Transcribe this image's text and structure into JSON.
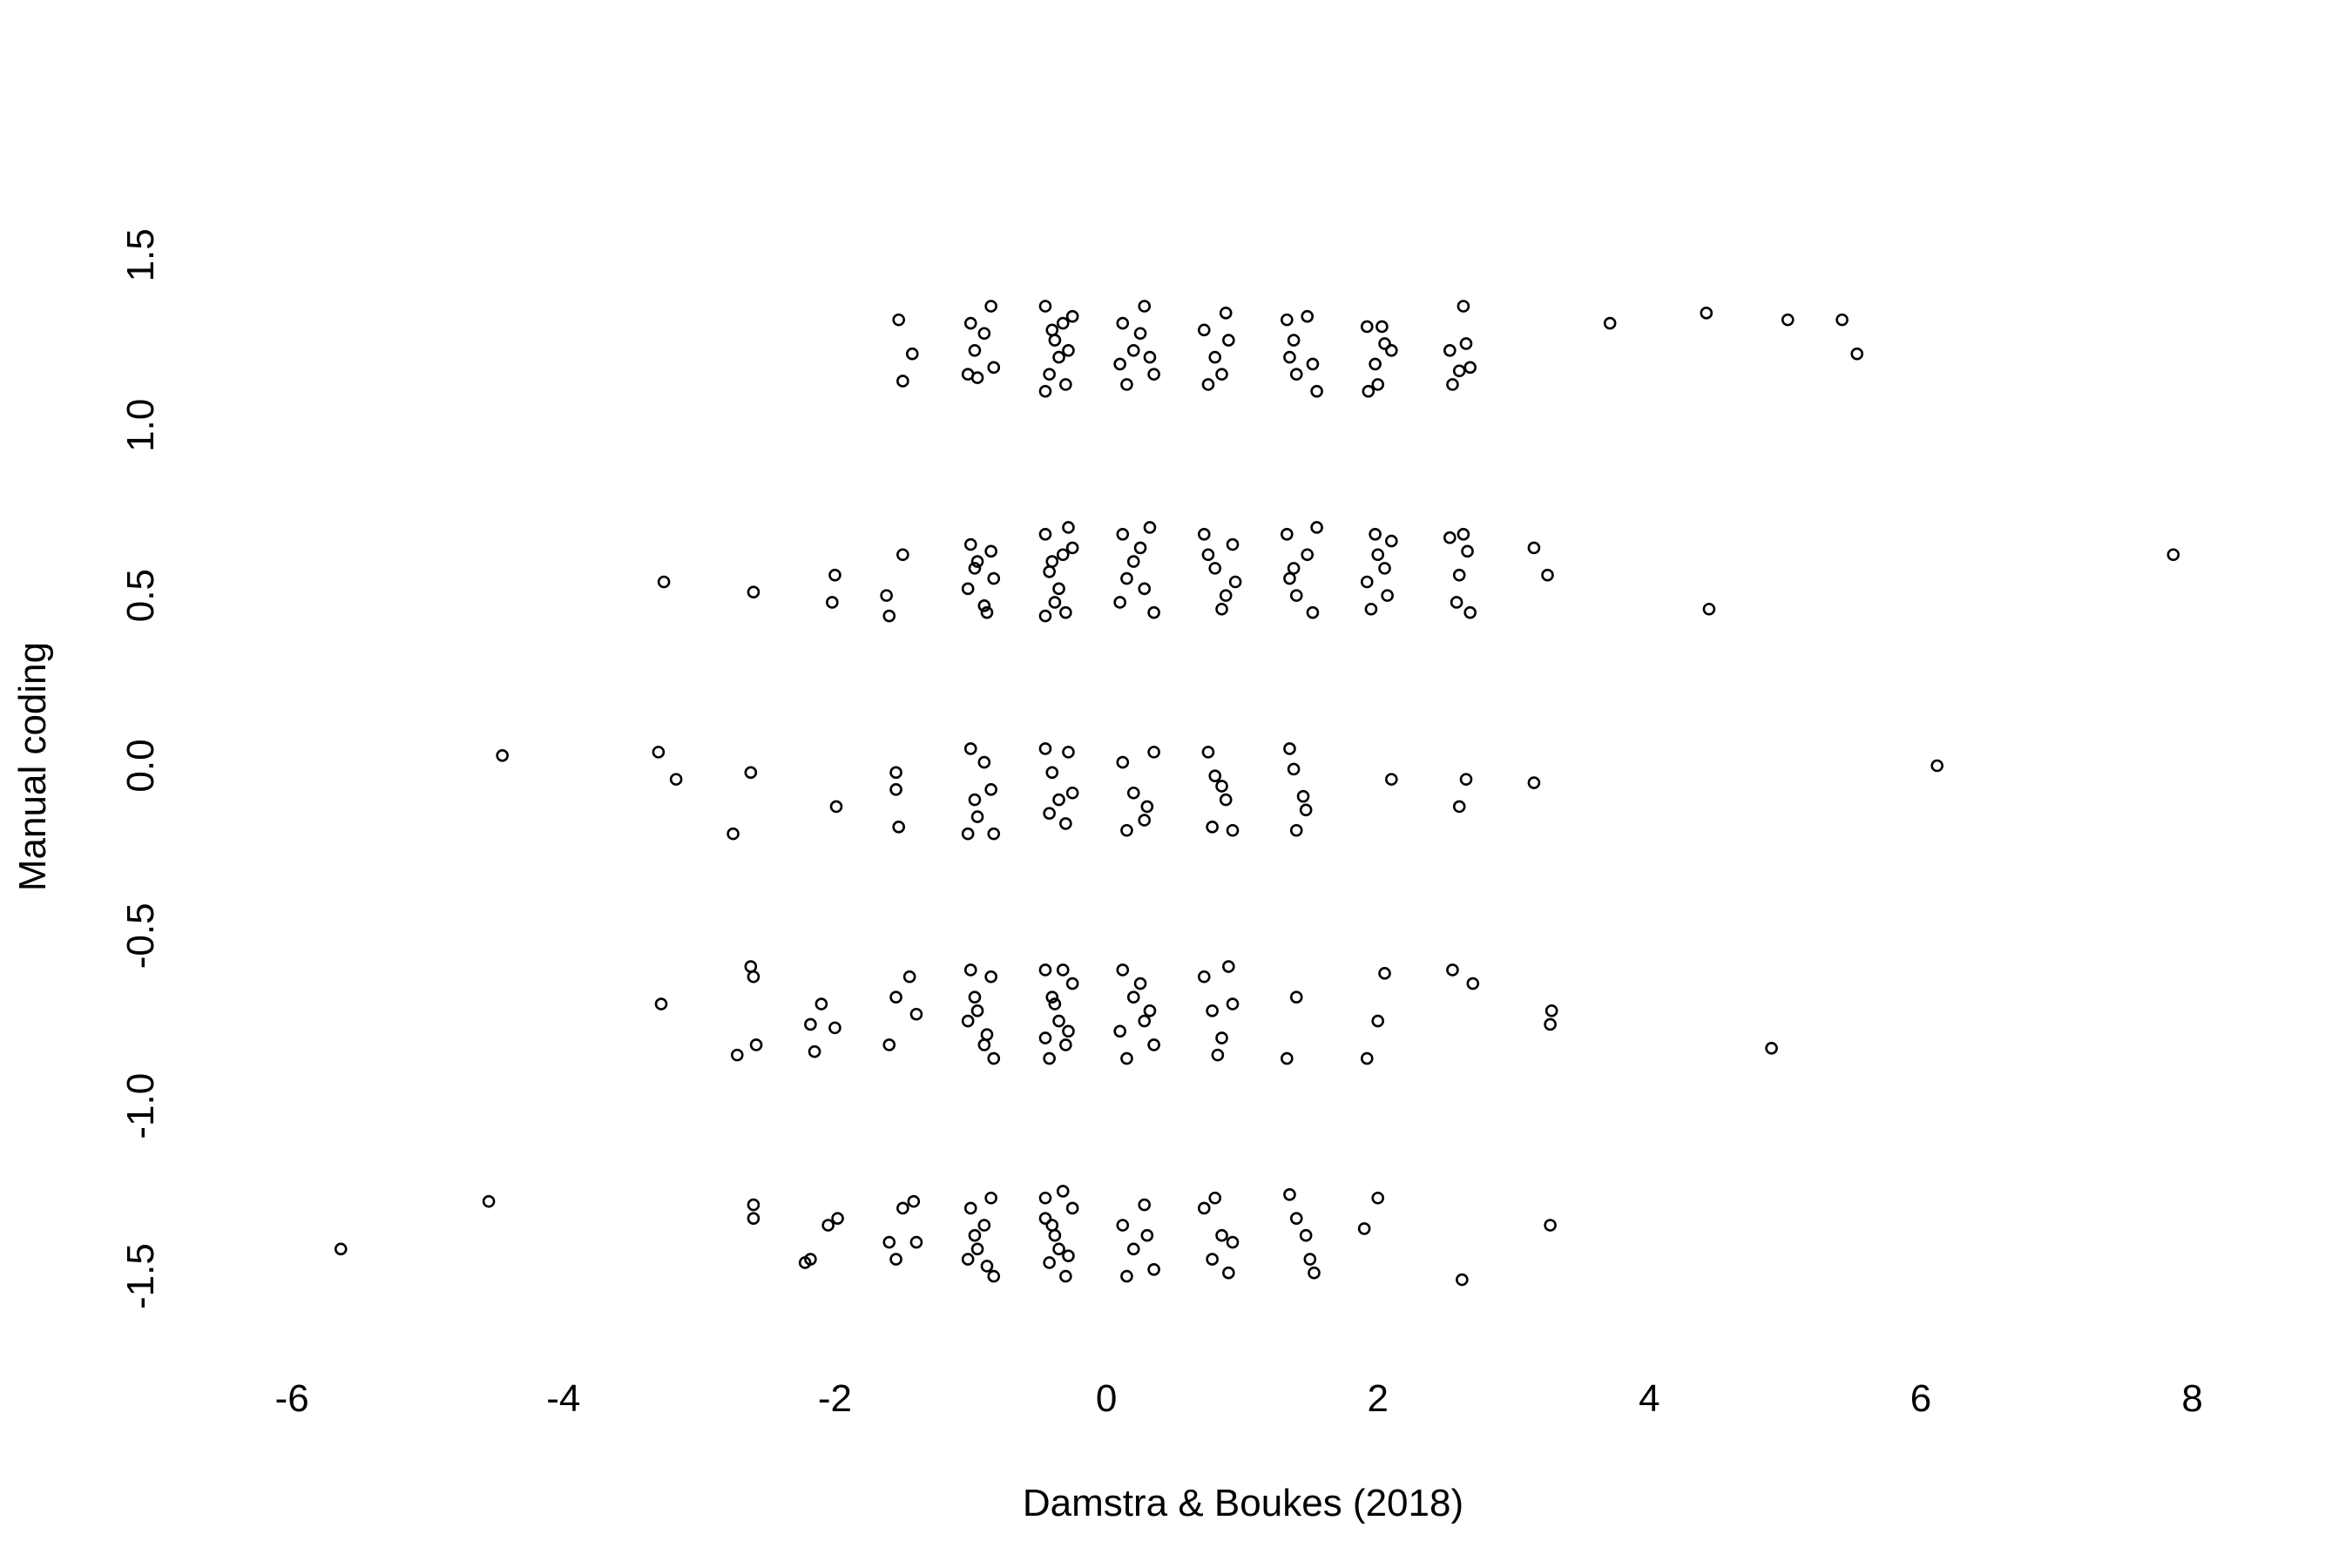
{
  "chart_data": {
    "type": "scatter",
    "xlabel": "Damstra & Boukes (2018)",
    "ylabel": "Manual coding",
    "xlim": [
      -6.2,
      8.4
    ],
    "ylim": [
      -1.62,
      1.62
    ],
    "xticks": [
      -6,
      -4,
      -2,
      0,
      2,
      4,
      6,
      8
    ],
    "yticks": [
      -1.5,
      {
        "value": -1,
        "label": "-1.0"
      },
      -0.5,
      {
        "value": 0,
        "label": "0.0"
      },
      0.5,
      {
        "value": 1,
        "label": "1.0"
      },
      1.5
    ],
    "color": "#000000",
    "x": [
      -1.53,
      -1.43,
      -1.5,
      3.71,
      4.42,
      5.02,
      5.42,
      5.53,
      -1.0,
      -0.97,
      -1.02,
      -0.9,
      -0.85,
      -0.83,
      -0.95,
      -0.45,
      -0.4,
      -0.35,
      -0.3,
      -0.42,
      -0.25,
      -0.38,
      -0.28,
      -0.45,
      -0.32,
      0.12,
      0.2,
      0.28,
      0.35,
      0.15,
      0.25,
      0.32,
      0.1,
      0.72,
      0.8,
      0.88,
      0.75,
      0.85,
      0.9,
      1.33,
      1.38,
      1.48,
      1.4,
      1.52,
      1.55,
      1.35,
      1.92,
      1.98,
      2.05,
      2.1,
      1.93,
      2.0,
      2.03,
      2.53,
      2.6,
      2.68,
      2.63,
      2.55,
      2.65,
      -3.26,
      -2.6,
      -2.0,
      -2.02,
      -1.62,
      -1.6,
      -1.5,
      3.15,
      3.25,
      4.44,
      7.86,
      -1.0,
      -0.97,
      -1.02,
      -0.9,
      -0.85,
      -0.83,
      -0.95,
      -0.88,
      -0.45,
      -0.4,
      -0.35,
      -0.3,
      -0.42,
      -0.25,
      -0.38,
      -0.28,
      -0.45,
      -0.32,
      0.12,
      0.2,
      0.28,
      0.35,
      0.15,
      0.25,
      0.32,
      0.1,
      0.72,
      0.8,
      0.88,
      0.75,
      0.85,
      0.93,
      0.95,
      1.33,
      1.38,
      1.48,
      1.4,
      1.52,
      1.55,
      1.35,
      1.92,
      1.98,
      2.05,
      2.1,
      1.95,
      2.0,
      2.07,
      2.53,
      2.6,
      2.68,
      2.63,
      2.58,
      2.66,
      -4.45,
      -3.3,
      -3.17,
      -2.62,
      -2.75,
      -1.99,
      -1.55,
      -1.55,
      -1.53,
      2.1,
      2.65,
      2.6,
      3.15,
      6.12,
      -1.0,
      -0.97,
      -1.02,
      -0.9,
      -0.85,
      -0.83,
      -0.95,
      -0.45,
      -0.4,
      -0.35,
      -0.3,
      -0.28,
      -0.42,
      -0.25,
      0.12,
      0.2,
      0.28,
      0.35,
      0.15,
      0.3,
      0.75,
      0.8,
      0.88,
      0.78,
      0.93,
      0.85,
      1.35,
      1.38,
      1.45,
      1.4,
      1.47,
      -3.28,
      -2.62,
      -2.6,
      -2.72,
      -2.58,
      -2.18,
      -2.1,
      -2.15,
      -2.0,
      -1.6,
      -1.55,
      -1.45,
      -1.4,
      1.33,
      1.4,
      1.92,
      2.0,
      2.05,
      2.55,
      2.7,
      3.28,
      3.27,
      4.9,
      -1.0,
      -0.97,
      -1.02,
      -0.9,
      -0.85,
      -0.83,
      -0.95,
      -0.88,
      -0.45,
      -0.4,
      -0.35,
      -0.3,
      -0.42,
      -0.25,
      -0.38,
      -0.28,
      -0.45,
      -0.32,
      0.12,
      0.2,
      0.28,
      0.35,
      0.15,
      0.25,
      0.32,
      0.1,
      0.72,
      0.78,
      0.85,
      0.9,
      0.93,
      0.82,
      -5.64,
      -4.55,
      -2.6,
      -2.6,
      -2.22,
      -2.18,
      -2.05,
      -1.98,
      -1.6,
      -1.55,
      -1.5,
      -1.42,
      -1.4,
      1.9,
      2.0,
      2.62,
      3.27,
      -1.0,
      -0.97,
      -1.02,
      -0.9,
      -0.85,
      -0.83,
      -0.95,
      -0.88,
      -0.45,
      -0.4,
      -0.35,
      -0.3,
      -0.42,
      -0.25,
      -0.38,
      -0.28,
      -0.45,
      -0.32,
      0.12,
      0.2,
      0.28,
      0.35,
      0.15,
      0.3,
      0.72,
      0.78,
      0.85,
      0.9,
      0.8,
      0.93,
      1.35,
      1.4,
      1.47,
      1.5,
      1.53
    ],
    "values": [
      1.31,
      1.21,
      1.13,
      1.3,
      1.33,
      1.31,
      1.31,
      1.21,
      1.3,
      1.22,
      1.15,
      1.27,
      1.35,
      1.17,
      1.14,
      1.35,
      1.28,
      1.2,
      1.12,
      1.15,
      1.32,
      1.25,
      1.22,
      1.1,
      1.3,
      1.3,
      1.22,
      1.35,
      1.15,
      1.12,
      1.27,
      1.2,
      1.18,
      1.28,
      1.2,
      1.33,
      1.12,
      1.15,
      1.25,
      1.31,
      1.25,
      1.32,
      1.15,
      1.18,
      1.1,
      1.2,
      1.29,
      1.18,
      1.24,
      1.22,
      1.1,
      1.12,
      1.29,
      1.22,
      1.16,
      1.17,
      1.35,
      1.12,
      1.24,
      0.54,
      0.51,
      0.56,
      0.48,
      0.5,
      0.44,
      0.62,
      0.64,
      0.56,
      0.46,
      0.62,
      0.65,
      0.58,
      0.52,
      0.47,
      0.63,
      0.55,
      0.6,
      0.45,
      0.68,
      0.6,
      0.52,
      0.45,
      0.57,
      0.64,
      0.48,
      0.7,
      0.44,
      0.62,
      0.68,
      0.6,
      0.52,
      0.45,
      0.55,
      0.64,
      0.7,
      0.48,
      0.68,
      0.58,
      0.5,
      0.62,
      0.46,
      0.65,
      0.54,
      0.68,
      0.58,
      0.62,
      0.5,
      0.45,
      0.7,
      0.55,
      0.54,
      0.68,
      0.58,
      0.66,
      0.46,
      0.62,
      0.5,
      0.67,
      0.56,
      0.45,
      0.68,
      0.48,
      0.63,
      0.03,
      0.04,
      -0.04,
      -0.02,
      -0.2,
      -0.12,
      -0.02,
      -0.07,
      -0.18,
      -0.04,
      -0.04,
      -0.12,
      -0.05,
      0.0,
      0.05,
      -0.1,
      -0.2,
      0.01,
      -0.07,
      -0.2,
      -0.15,
      0.05,
      -0.02,
      -0.1,
      -0.17,
      0.04,
      -0.14,
      -0.08,
      0.01,
      -0.08,
      -0.16,
      0.04,
      -0.19,
      -0.12,
      0.04,
      -0.03,
      -0.1,
      -0.18,
      -0.19,
      -0.06,
      0.05,
      -0.01,
      -0.09,
      -0.19,
      -0.13,
      -0.7,
      -0.59,
      -0.62,
      -0.85,
      -0.82,
      -0.76,
      -0.7,
      -0.84,
      -0.77,
      -0.82,
      -0.68,
      -0.62,
      -0.73,
      -0.86,
      -0.68,
      -0.86,
      -0.75,
      -0.61,
      -0.6,
      -0.64,
      -0.72,
      -0.76,
      -0.83,
      -0.6,
      -0.68,
      -0.75,
      -0.82,
      -0.62,
      -0.86,
      -0.72,
      -0.79,
      -0.6,
      -0.68,
      -0.75,
      -0.82,
      -0.86,
      -0.64,
      -0.7,
      -0.78,
      -0.8,
      -0.6,
      -0.6,
      -0.68,
      -0.75,
      -0.82,
      -0.86,
      -0.64,
      -0.72,
      -0.78,
      -0.62,
      -0.72,
      -0.8,
      -0.59,
      -0.7,
      -0.85,
      -1.42,
      -1.28,
      -1.29,
      -1.33,
      -1.46,
      -1.45,
      -1.35,
      -1.33,
      -1.4,
      -1.45,
      -1.3,
      -1.28,
      -1.4,
      -1.36,
      -1.27,
      -1.51,
      -1.35,
      -1.3,
      -1.38,
      -1.45,
      -1.35,
      -1.27,
      -1.5,
      -1.42,
      -1.47,
      -1.27,
      -1.35,
      -1.42,
      -1.5,
      -1.46,
      -1.3,
      -1.38,
      -1.44,
      -1.33,
      -1.25,
      -1.35,
      -1.42,
      -1.29,
      -1.48,
      -1.5,
      -1.38,
      -1.3,
      -1.45,
      -1.38,
      -1.49,
      -1.27,
      -1.4,
      -1.26,
      -1.33,
      -1.38,
      -1.45,
      -1.49
    ]
  }
}
